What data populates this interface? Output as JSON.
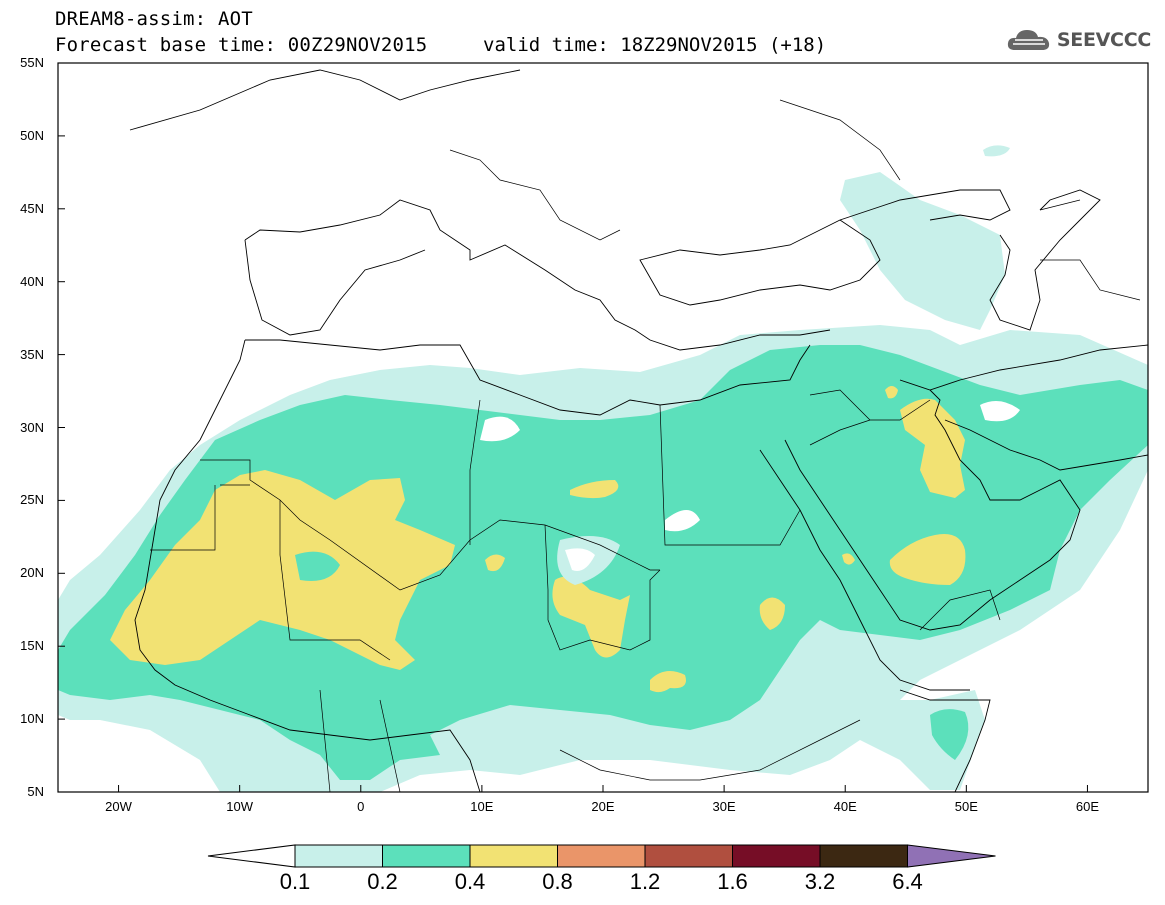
{
  "title": {
    "line1": "DREAM8-assim: AOT",
    "line2": "Forecast base time: 00Z29NOV2015",
    "valid": "valid time: 18Z29NOV2015 (+18)"
  },
  "logo": {
    "text": "SEEVCCC",
    "icon": "cloud-icon"
  },
  "map": {
    "extent": {
      "lon": [
        -25,
        65
      ],
      "lat": [
        5,
        55
      ]
    },
    "lat_ticks": [
      "55N",
      "50N",
      "45N",
      "40N",
      "35N",
      "30N",
      "25N",
      "20N",
      "15N",
      "10N",
      "5N"
    ],
    "lon_ticks": [
      "20W",
      "10W",
      "0",
      "10E",
      "20E",
      "30E",
      "40E",
      "50E",
      "60E"
    ]
  },
  "colorbar": {
    "labels": [
      "0.1",
      "0.2",
      "0.4",
      "0.8",
      "1.2",
      "1.6",
      "3.2",
      "6.4"
    ],
    "colors": [
      "#c8f0ea",
      "#5ce0bb",
      "#f2e273",
      "#ea9569",
      "#b04f3f",
      "#760d26",
      "#3c2812",
      "#9071b5"
    ]
  }
}
